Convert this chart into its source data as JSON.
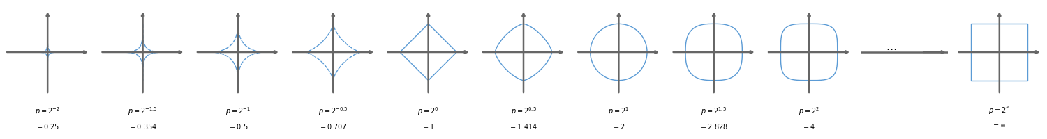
{
  "p_values": [
    0.25,
    0.354,
    0.5,
    0.707,
    1.0,
    1.414,
    2.0,
    2.828,
    4.0
  ],
  "p_exponents": [
    "2^{-2}",
    "2^{-1.5}",
    "2^{-1}",
    "2^{-0.5}",
    "2^{0}",
    "2^{0.5}",
    "2^{1}",
    "2^{1.5}",
    "2^{2}"
  ],
  "p_sublabels": [
    "= 0.25",
    "= 0.354",
    "= 0.5",
    "= 0.707",
    "= 1",
    "= 1.414",
    "= 2",
    "= 2.828",
    "= 4"
  ],
  "curve_color": "#5b9bd5",
  "axis_color": "#666666",
  "background_color": "#ffffff",
  "n_points": 2000,
  "curve_linewidth": 1.0,
  "axis_linewidth": 1.8,
  "arrow_size": 6,
  "axis_ext": 1.3,
  "shape_scale": 0.85,
  "fontsize": 7.0
}
